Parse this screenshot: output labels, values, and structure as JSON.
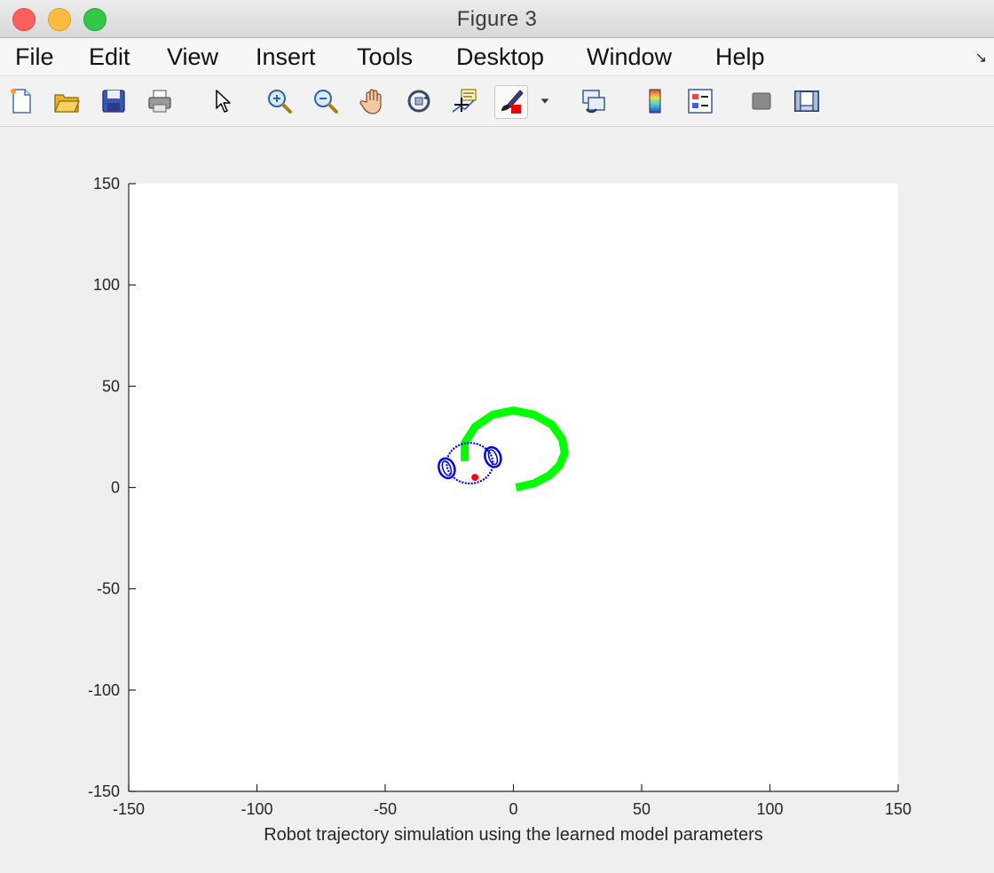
{
  "window": {
    "title": "Figure 3"
  },
  "menu": [
    "File",
    "Edit",
    "View",
    "Insert",
    "Tools",
    "Desktop",
    "Window",
    "Help"
  ],
  "toolbar": {
    "tools": [
      "new-figure-icon",
      "open-file-icon",
      "save-icon",
      "print-icon",
      "pointer-icon",
      "zoom-in-icon",
      "zoom-out-icon",
      "pan-icon",
      "rotate-3d-icon",
      "data-cursor-icon",
      "brush-icon",
      "brush-dropdown-icon",
      "link-plot-icon",
      "colorbar-icon",
      "legend-icon",
      "hide-plot-tools-icon",
      "show-plot-tools-icon"
    ]
  },
  "chart_data": {
    "type": "line",
    "title": "",
    "xlabel": "Robot trajectory simulation using the learned model parameters",
    "ylabel": "",
    "xlim": [
      -150,
      150
    ],
    "ylim": [
      -150,
      150
    ],
    "xticks": [
      "-150",
      "-100",
      "-50",
      "0",
      "50",
      "100",
      "150"
    ],
    "yticks": [
      "150",
      "100",
      "50",
      "0",
      "-50",
      "-100",
      "-150"
    ],
    "grid": false,
    "series": [
      {
        "color": "#00ff00",
        "x": [
          1,
          8,
          14,
          18,
          20,
          19,
          15,
          8,
          0,
          -8,
          -15,
          -19,
          -19
        ],
        "y": [
          0,
          2,
          6,
          11,
          17,
          24,
          31,
          36,
          38,
          36,
          30,
          22,
          13
        ]
      }
    ],
    "robot": {
      "color": "#0000ee",
      "body_center": [
        -17,
        12
      ],
      "body_radius": [
        9,
        10
      ],
      "wheels": [
        {
          "center": [
            -26,
            9.5
          ],
          "radius": [
            3,
            5
          ]
        },
        {
          "center": [
            -8,
            15
          ],
          "radius": [
            3,
            5
          ]
        }
      ],
      "marker": {
        "x": -15,
        "y": 5,
        "color": "#ff0000"
      }
    }
  }
}
